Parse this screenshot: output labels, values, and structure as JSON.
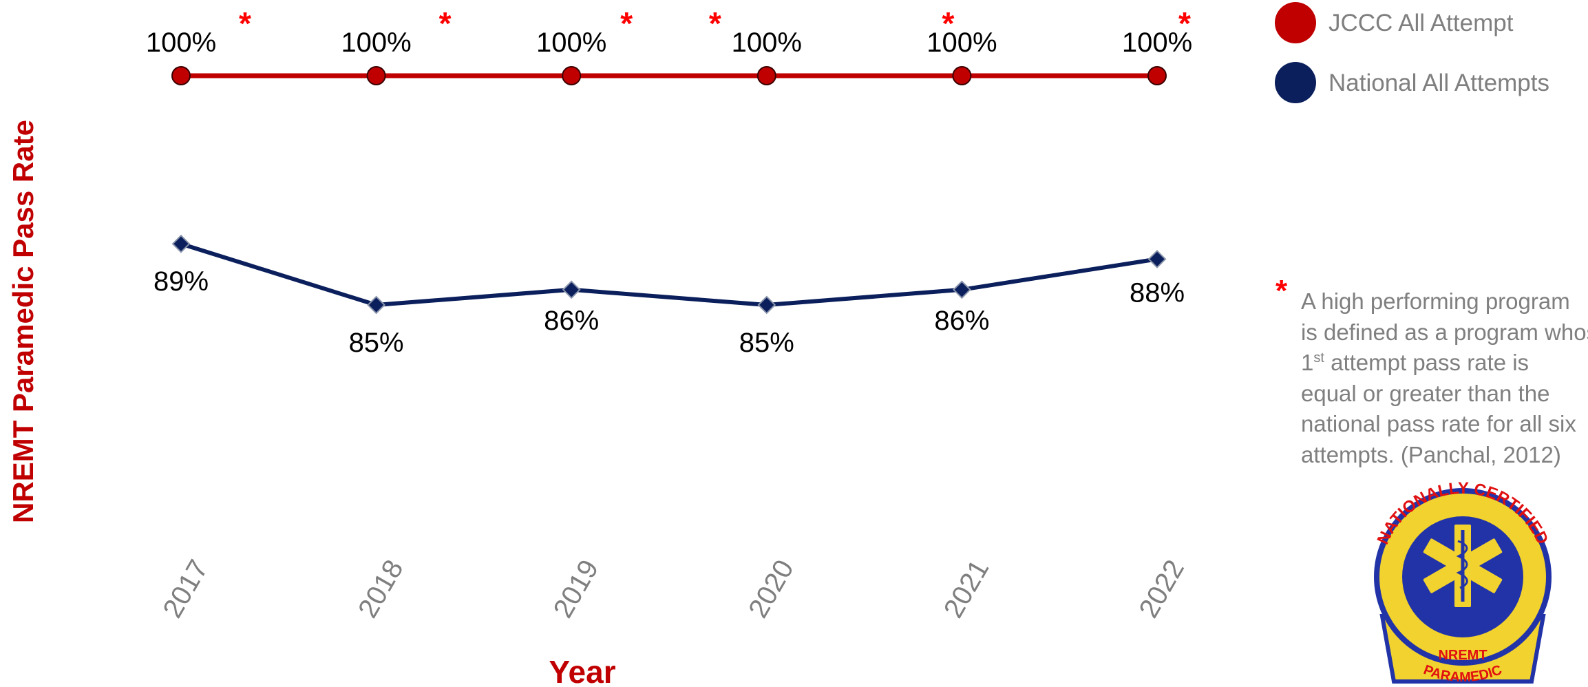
{
  "chart_data": {
    "type": "line",
    "title": "",
    "xlabel": "Year",
    "ylabel": "NREMT Paramedic Pass Rate",
    "categories": [
      "2017",
      "2018",
      "2019",
      "2020",
      "2021",
      "2022"
    ],
    "series": [
      {
        "name": "JCCC All Attempt",
        "color": "#c00000",
        "marker": "circle",
        "values": [
          100,
          100,
          100,
          100,
          100,
          100
        ],
        "labels": [
          "100%",
          "100%",
          "100%",
          "100%",
          "100%",
          "100%"
        ]
      },
      {
        "name": "National All Attempts",
        "color": "#0a1f5c",
        "marker": "diamond",
        "values": [
          89,
          85,
          86,
          85,
          86,
          88
        ],
        "labels": [
          "89%",
          "85%",
          "86%",
          "85%",
          "86%",
          "88%"
        ]
      }
    ],
    "high_performing_markers": [
      "*",
      "*",
      "*",
      "*",
      "*",
      "*"
    ],
    "grid": false,
    "legend_position": "top-right"
  },
  "colors": {
    "jccc": "#c00000",
    "national": "#0a1f5c",
    "star": "#ff0000",
    "axis_text": "#7f7f7f",
    "title_red": "#c00000"
  },
  "note": {
    "star": "*",
    "lines": [
      "A high performing program",
      "is defined as a program whose",
      "attempt pass rate is",
      "equal or greater than the",
      "national pass rate for all six",
      "attempts. (Panchal, 2012)"
    ],
    "line3_prefix": "1",
    "line3_sup": "st"
  },
  "badge": {
    "top_text": "NATIONALLY CERTIFIED",
    "mid_text": "NREMT",
    "bottom_text": "PARAMEDIC",
    "icon": "star-of-life-icon"
  }
}
